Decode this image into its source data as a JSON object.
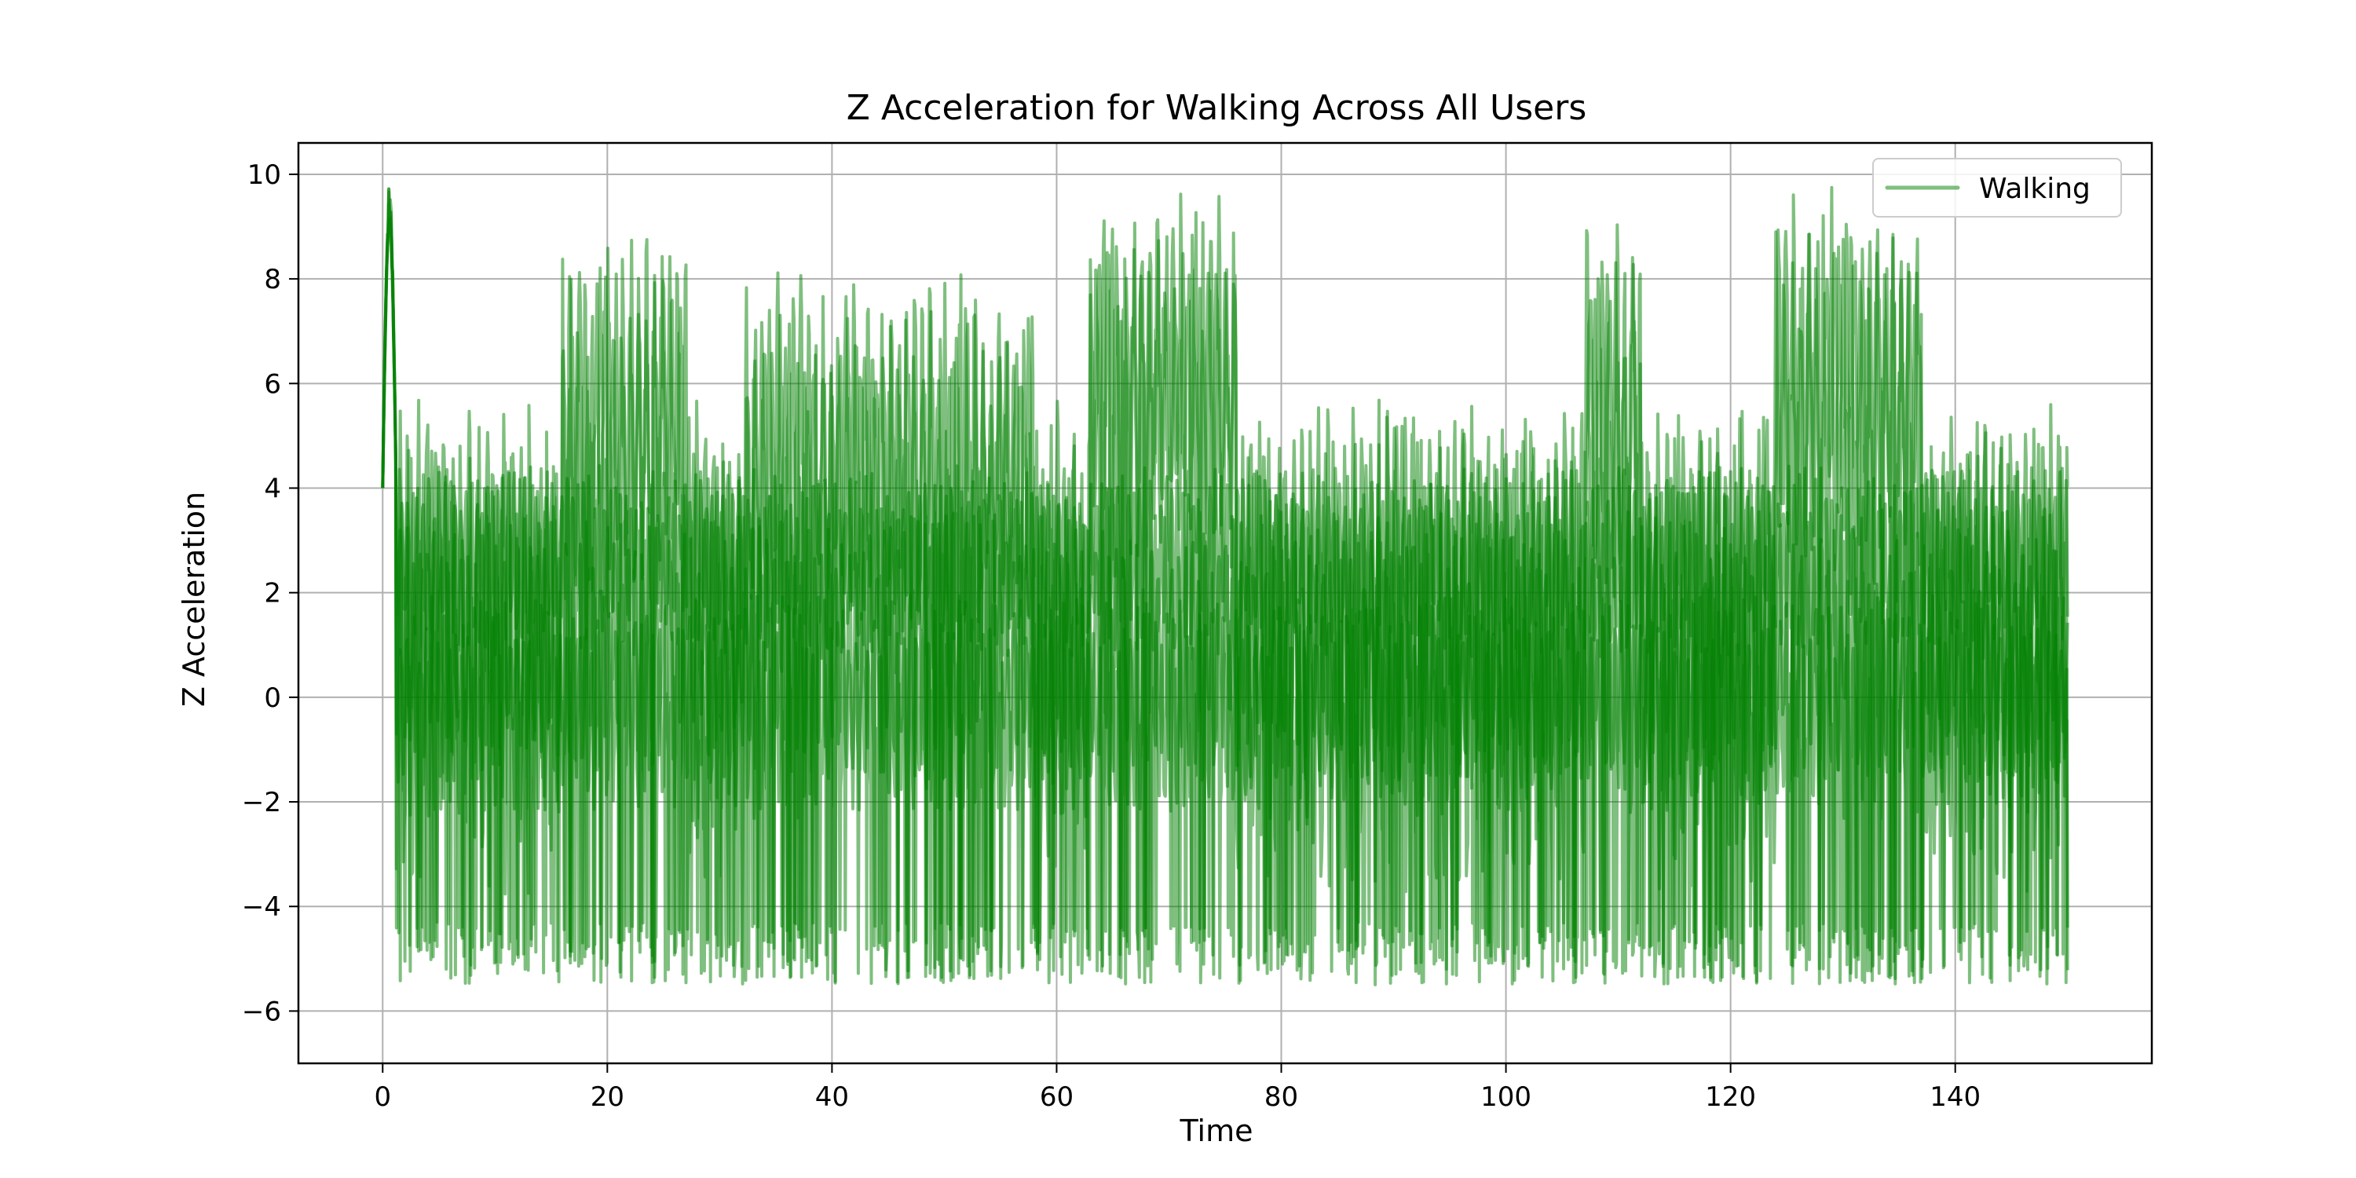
{
  "chart_data": {
    "type": "line",
    "title": "Z Acceleration for Walking Across All Users",
    "xlabel": "Time",
    "ylabel": "Z Acceleration",
    "xlim": [
      -7.5,
      157.5
    ],
    "ylim": [
      -7,
      10.6
    ],
    "x_ticks": [
      0,
      20,
      40,
      60,
      80,
      100,
      120,
      140
    ],
    "y_ticks": [
      -6,
      -4,
      -2,
      0,
      2,
      4,
      6,
      8,
      10
    ],
    "grid": true,
    "legend_position": "top-right",
    "series": [
      {
        "name": "Walking",
        "color": "#008000",
        "opacity": 0.5,
        "approximate_profile": {
          "x_start": 0,
          "x_end": 150,
          "initial_peak_max": 9.8,
          "typical_min": -5.5,
          "overall_min": -6.2,
          "band_1_range": [
            -2,
            4
          ],
          "band_2_range": [
            -4.5,
            6.5
          ],
          "upper_band_segments": [
            {
              "x": [
                16,
                27
              ],
              "level": 6.0
            },
            {
              "x": [
                32,
                58
              ],
              "level": 5.2
            },
            {
              "x": [
                63,
                76
              ],
              "level": 6.8
            },
            {
              "x": [
                107,
                112
              ],
              "level": 6.3
            },
            {
              "x": [
                124,
                137
              ],
              "level": 6.8
            }
          ]
        }
      }
    ]
  }
}
